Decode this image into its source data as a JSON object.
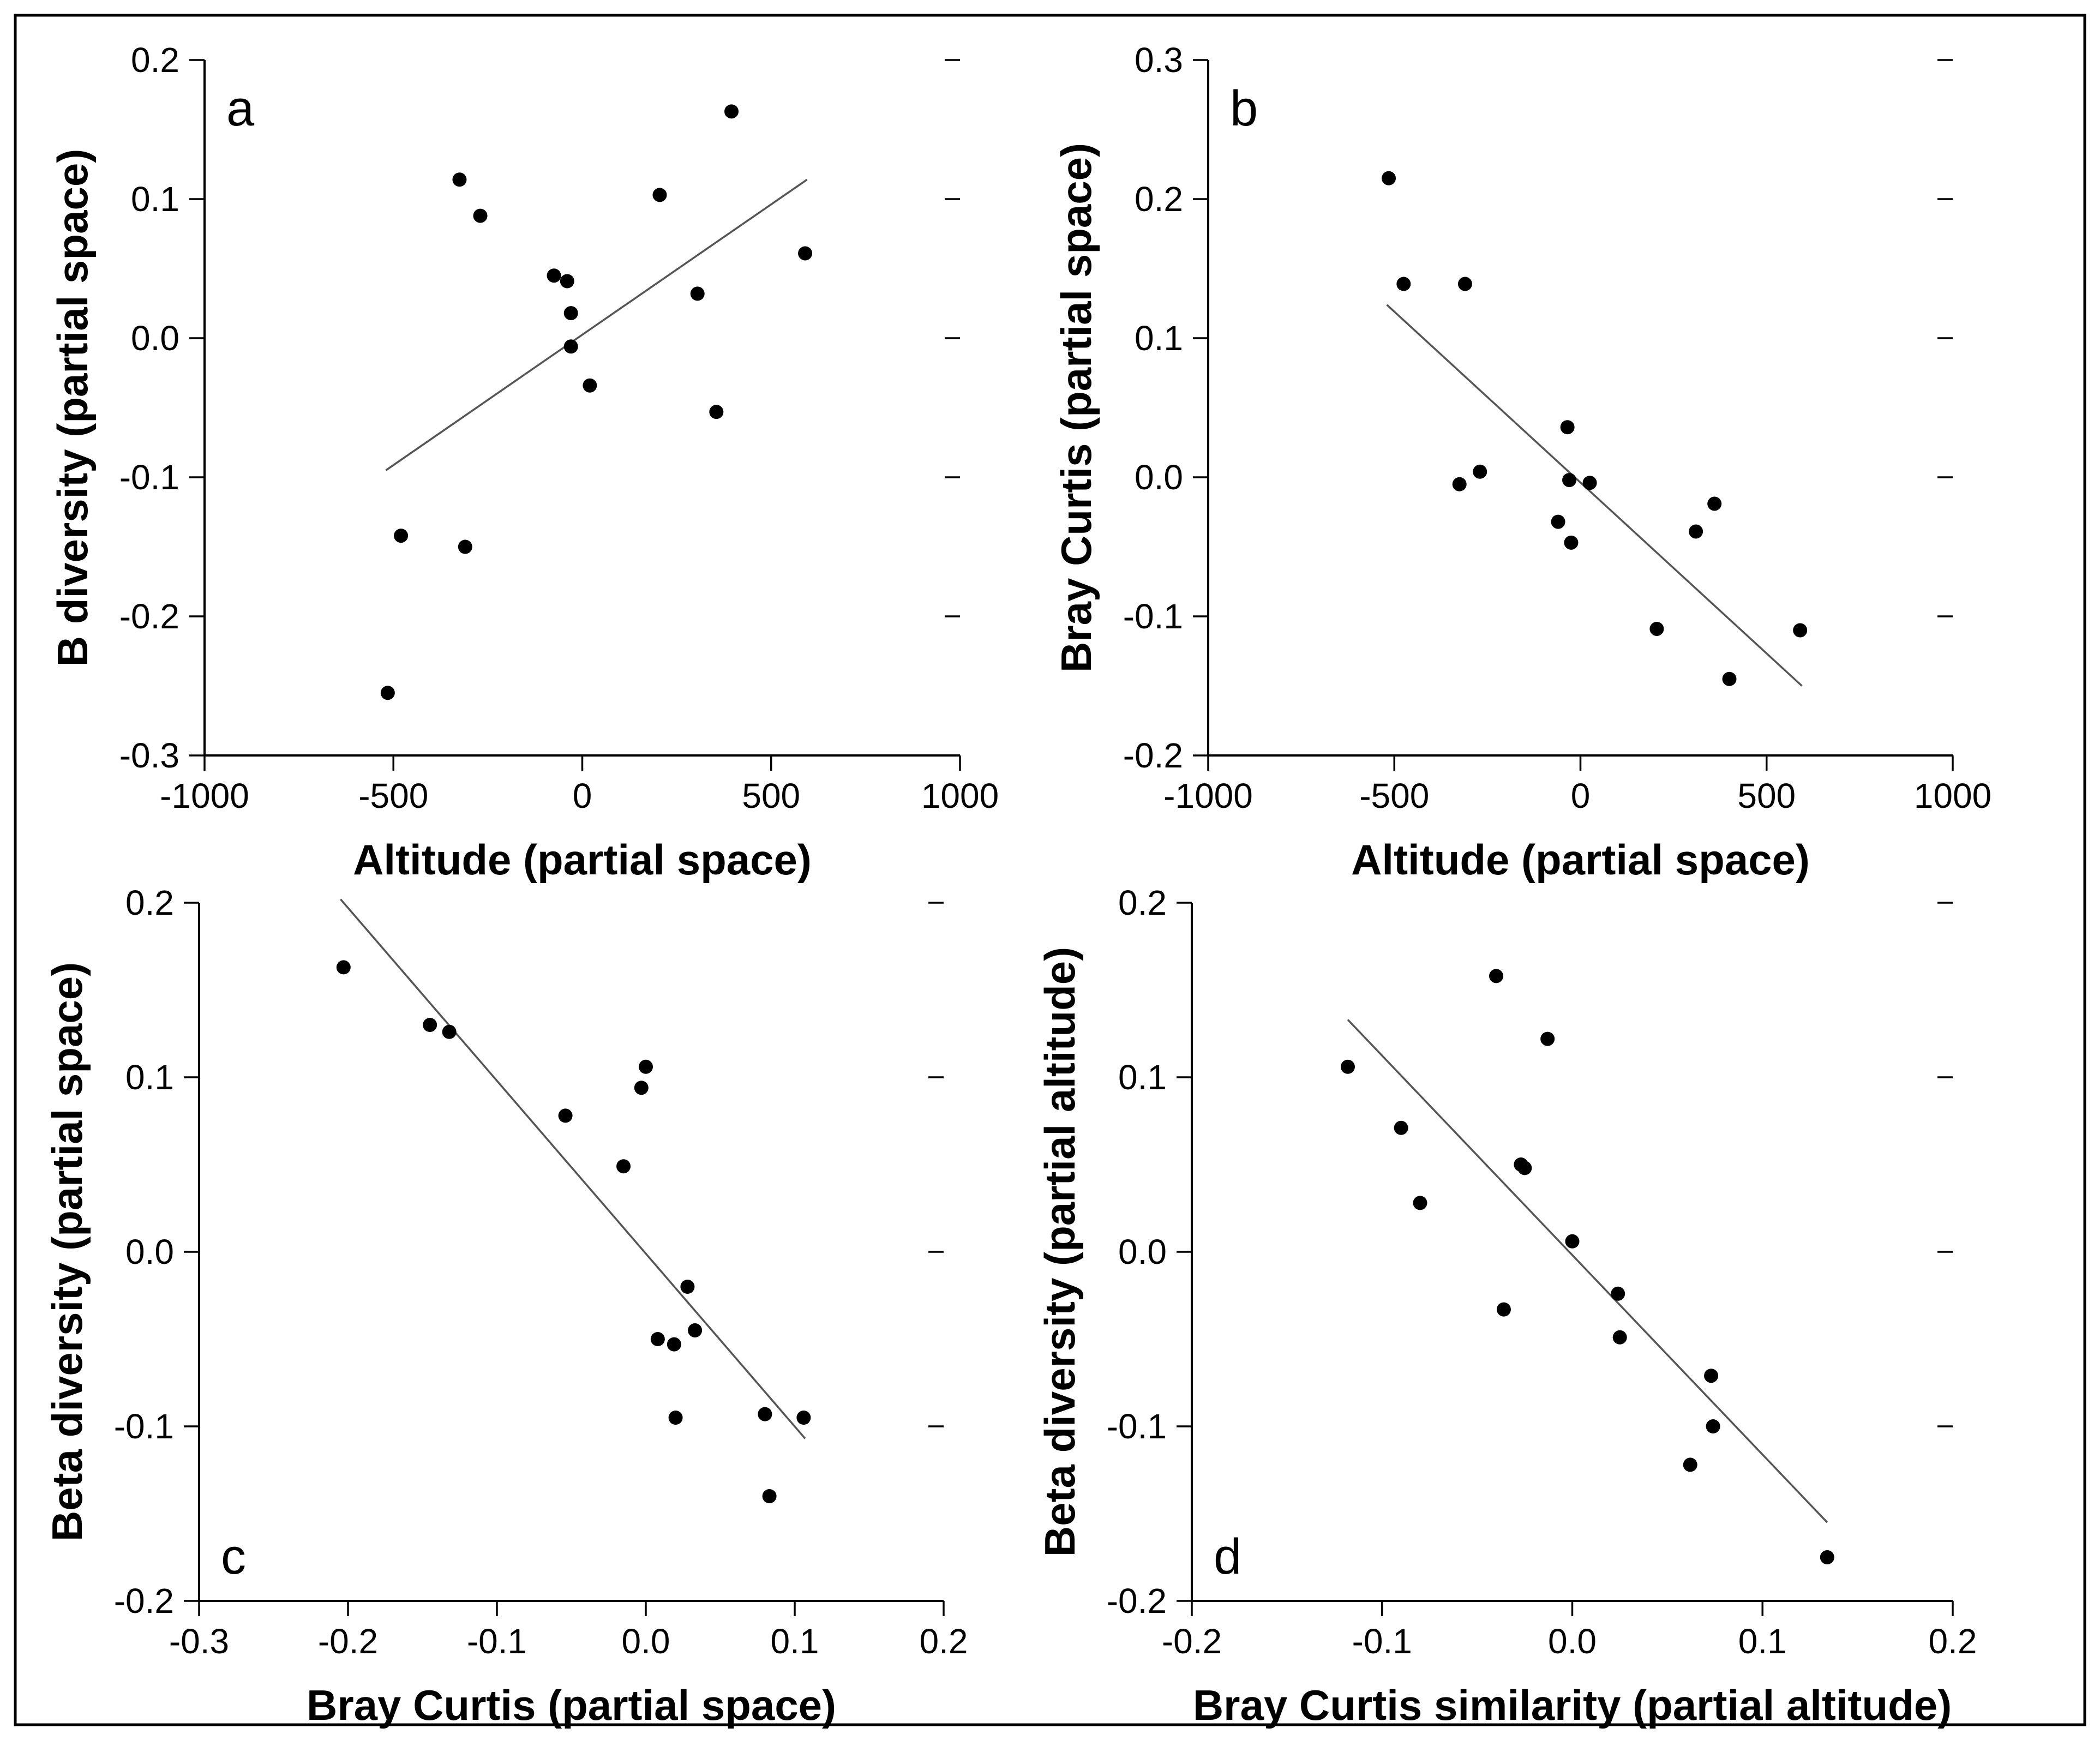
{
  "chart_data": [
    {
      "type": "scatter",
      "panel_label": "a",
      "xlabel": "Altitude (partial space)",
      "ylabel": "B diversity (partial space)",
      "xlim": [
        -1000,
        1000
      ],
      "ylim": [
        -0.3,
        0.2
      ],
      "xticks": [
        -1000,
        -500,
        0,
        500,
        1000
      ],
      "yticks": [
        -0.3,
        -0.2,
        -0.1,
        0.0,
        0.1,
        0.2
      ],
      "xtick_labels": [
        "-1000",
        "-500",
        "0",
        "500",
        "1000"
      ],
      "ytick_labels": [
        "-0.3",
        "-0.2",
        "-0.1",
        "0.0",
        "0.1",
        "0.2"
      ],
      "points": {
        "x": [
          -515,
          -480,
          -325,
          -310,
          -270,
          -75,
          -40,
          -30,
          -30,
          20,
          205,
          305,
          355,
          395,
          590
        ],
        "y": [
          -0.255,
          -0.142,
          0.114,
          -0.15,
          0.088,
          0.045,
          0.041,
          0.018,
          -0.006,
          -0.034,
          0.103,
          0.032,
          -0.053,
          0.163,
          0.061
        ]
      },
      "fit_line": {
        "x": [
          -520,
          595
        ],
        "y": [
          -0.095,
          0.114
        ]
      }
    },
    {
      "type": "scatter",
      "panel_label": "b",
      "xlabel": "Altitude (partial space)",
      "ylabel": "Bray Curtis (partial space)",
      "xlim": [
        -1000,
        1000
      ],
      "ylim": [
        -0.2,
        0.3
      ],
      "xticks": [
        -1000,
        -500,
        0,
        500,
        1000
      ],
      "yticks": [
        -0.2,
        -0.1,
        0.0,
        0.1,
        0.2,
        0.3
      ],
      "xtick_labels": [
        "-1000",
        "-500",
        "0",
        "500",
        "1000"
      ],
      "ytick_labels": [
        "-0.2",
        "-0.1",
        "0.0",
        "0.1",
        "0.2",
        "0.3"
      ],
      "points": {
        "x": [
          -515,
          -475,
          -310,
          -325,
          -270,
          -60,
          -35,
          -30,
          -25,
          25,
          205,
          310,
          360,
          400,
          590
        ],
        "y": [
          0.215,
          0.139,
          0.139,
          -0.005,
          0.004,
          -0.032,
          0.036,
          -0.002,
          -0.047,
          -0.004,
          -0.109,
          -0.039,
          -0.019,
          -0.145,
          -0.11
        ]
      },
      "fit_line": {
        "x": [
          -520,
          595
        ],
        "y": [
          0.124,
          -0.15
        ]
      }
    },
    {
      "type": "scatter",
      "panel_label": "c",
      "xlabel": "Bray Curtis (partial space)",
      "ylabel": "Beta diversity (partial space)",
      "xlim": [
        -0.3,
        0.2
      ],
      "ylim": [
        -0.2,
        0.2
      ],
      "xticks": [
        -0.3,
        -0.2,
        -0.1,
        0.0,
        0.1,
        0.2
      ],
      "yticks": [
        -0.2,
        -0.1,
        0.0,
        0.1,
        0.2
      ],
      "xtick_labels": [
        "-0.3",
        "-0.2",
        "-0.1",
        "0.0",
        "0.1",
        "0.2"
      ],
      "ytick_labels": [
        "-0.2",
        "-0.1",
        "0.0",
        "0.1",
        "0.2"
      ],
      "points": {
        "x": [
          -0.203,
          -0.145,
          -0.132,
          -0.054,
          -0.015,
          -0.003,
          0.0,
          0.008,
          0.019,
          0.02,
          0.028,
          0.033,
          0.08,
          0.083,
          0.106
        ],
        "y": [
          0.163,
          0.13,
          0.126,
          0.078,
          0.049,
          0.094,
          0.106,
          -0.05,
          -0.053,
          -0.095,
          -0.02,
          -0.045,
          -0.093,
          -0.14,
          -0.095
        ]
      },
      "fit_line": {
        "x": [
          -0.205,
          0.107
        ],
        "y": [
          0.202,
          -0.107
        ]
      }
    },
    {
      "type": "scatter",
      "panel_label": "d",
      "xlabel": "Bray Curtis similarity (partial altitude)",
      "ylabel": "Beta diversity (partial altitude)",
      "xlim": [
        -0.2,
        0.2
      ],
      "ylim": [
        -0.2,
        0.2
      ],
      "xticks": [
        -0.2,
        -0.1,
        0.0,
        0.1,
        0.2
      ],
      "yticks": [
        -0.2,
        -0.1,
        0.0,
        0.1,
        0.2
      ],
      "xtick_labels": [
        "-0.2",
        "-0.1",
        "0.0",
        "0.1",
        "0.2"
      ],
      "ytick_labels": [
        "-0.2",
        "-0.1",
        "0.0",
        "0.1",
        "0.2"
      ],
      "points": {
        "x": [
          -0.118,
          -0.09,
          -0.08,
          -0.04,
          -0.036,
          -0.027,
          -0.025,
          -0.013,
          0.0,
          0.024,
          0.025,
          0.062,
          0.073,
          0.074,
          0.134
        ],
        "y": [
          0.106,
          0.071,
          0.028,
          0.158,
          -0.033,
          0.05,
          0.048,
          0.122,
          0.006,
          -0.024,
          -0.049,
          -0.122,
          -0.071,
          -0.1,
          -0.175
        ]
      },
      "fit_line": {
        "x": [
          -0.118,
          0.134
        ],
        "y": [
          0.133,
          -0.155
        ]
      }
    }
  ]
}
